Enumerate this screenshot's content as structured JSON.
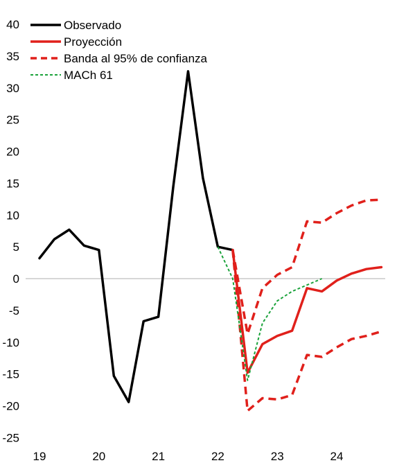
{
  "chart_data": {
    "type": "line",
    "title": "",
    "xlabel": "",
    "ylabel": "",
    "xlim": [
      19,
      24.85
    ],
    "ylim": [
      -25,
      40
    ],
    "x_ticks": [
      19,
      20,
      21,
      22,
      23,
      24
    ],
    "x_tick_labels": [
      "19",
      "20",
      "21",
      "22",
      "23",
      "24"
    ],
    "y_ticks": [
      -25,
      -20,
      -15,
      -10,
      -5,
      0,
      5,
      10,
      15,
      20,
      25,
      30,
      35,
      40
    ],
    "y_tick_labels": [
      "-25",
      "-20",
      "-15",
      "-10",
      "-5",
      "0",
      "5",
      "10",
      "15",
      "20",
      "25",
      "30",
      "35",
      "40"
    ],
    "grid": false,
    "zero_line": true,
    "legend_position": "top-left",
    "series": [
      {
        "name": "Observado",
        "color": "#000000",
        "style": "solid",
        "x": [
          19.0,
          19.25,
          19.5,
          19.75,
          20.0,
          20.25,
          20.5,
          20.75,
          21.0,
          21.25,
          21.5,
          21.75,
          22.0,
          22.25
        ],
        "y": [
          3.2,
          6.2,
          7.7,
          5.2,
          4.5,
          -15.3,
          -19.4,
          -6.7,
          -6.0,
          14.5,
          32.6,
          15.8,
          5.0,
          4.5
        ]
      },
      {
        "name": "Proyección",
        "color": "#e0201b",
        "style": "solid",
        "x": [
          22.25,
          22.5,
          22.75,
          23.0,
          23.25,
          23.5,
          23.75,
          24.0,
          24.25,
          24.5,
          24.75
        ],
        "y": [
          4.5,
          -14.8,
          -10.3,
          -9.0,
          -8.2,
          -1.5,
          -2.0,
          -0.3,
          0.8,
          1.5,
          1.8
        ]
      },
      {
        "name": "Banda al 95% de confianza",
        "color": "#e0201b",
        "style": "dashed",
        "x": [
          22.25,
          22.5,
          22.75,
          23.0,
          23.25,
          23.5,
          23.75,
          24.0,
          24.25,
          24.5,
          24.75
        ],
        "y": [
          4.5,
          -8.7,
          -1.5,
          0.6,
          1.8,
          9.0,
          8.8,
          10.3,
          11.5,
          12.3,
          12.4
        ]
      },
      {
        "name": "",
        "color": "#e0201b",
        "style": "dashed",
        "x": [
          22.25,
          22.5,
          22.75,
          23.0,
          23.25,
          23.5,
          23.75,
          24.0,
          24.25,
          24.5,
          24.75
        ],
        "y": [
          4.5,
          -20.8,
          -18.8,
          -19.0,
          -18.3,
          -12.0,
          -12.3,
          -10.8,
          -9.5,
          -9.0,
          -8.3
        ]
      },
      {
        "name": "MACh 61",
        "color": "#1aa23a",
        "style": "dotted",
        "x": [
          22.0,
          22.25,
          22.5,
          22.75,
          23.0,
          23.25,
          23.5,
          23.75
        ],
        "y": [
          5.0,
          0.0,
          -16.0,
          -7.0,
          -3.5,
          -2.0,
          -1.0,
          0.0
        ]
      }
    ]
  }
}
